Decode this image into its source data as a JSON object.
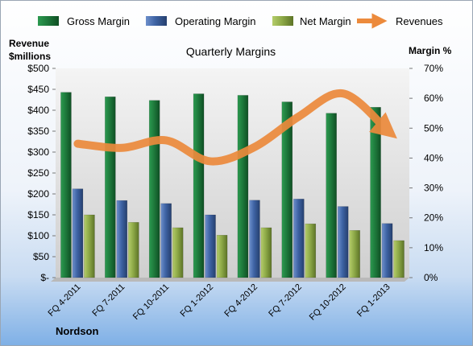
{
  "colors": {
    "gross": "#1e7a3c",
    "operating": "#3e63a4",
    "net": "#8eaa48",
    "revenues": "#ec8a3c"
  },
  "chart_data": {
    "type": "bar",
    "title": "Quarterly Margins",
    "left_axis_label_line1": "Revenue",
    "left_axis_label_line2": "$millions",
    "right_axis_label": "Margin %",
    "footer": "Nordson",
    "categories": [
      "FQ 4-2011",
      "FQ 7-2011",
      "FQ 10-2011",
      "FQ 1-2012",
      "FQ 4-2012",
      "FQ 7-2012",
      "FQ 10-2012",
      "FQ 1-2013"
    ],
    "left_ylim": [
      0,
      500
    ],
    "right_ylim": [
      0,
      70
    ],
    "left_ticks": [
      "$-",
      "$50",
      "$100",
      "$150",
      "$200",
      "$250",
      "$300",
      "$350",
      "$400",
      "$450",
      "$500"
    ],
    "right_ticks": [
      "0%",
      "10%",
      "20%",
      "30%",
      "40%",
      "50%",
      "60%",
      "70%"
    ],
    "legend_placement": "top",
    "grid": false,
    "series": [
      {
        "name": "Gross Margin",
        "axis": "right",
        "type": "bar",
        "values": [
          62,
          60.5,
          59.3,
          61.5,
          61,
          58.8,
          55,
          57
        ]
      },
      {
        "name": "Operating Margin",
        "axis": "right",
        "type": "bar",
        "values": [
          29.7,
          25.8,
          24.8,
          21,
          25.9,
          26.3,
          23.8,
          18.1
        ]
      },
      {
        "name": "Net Margin",
        "axis": "right",
        "type": "bar",
        "values": [
          21,
          18.5,
          16.7,
          14.2,
          16.7,
          18,
          15.8,
          12.4
        ]
      },
      {
        "name": "Revenues",
        "axis": "left",
        "type": "line",
        "values": [
          320,
          310,
          328,
          278,
          312,
          385,
          440,
          352
        ]
      }
    ]
  }
}
